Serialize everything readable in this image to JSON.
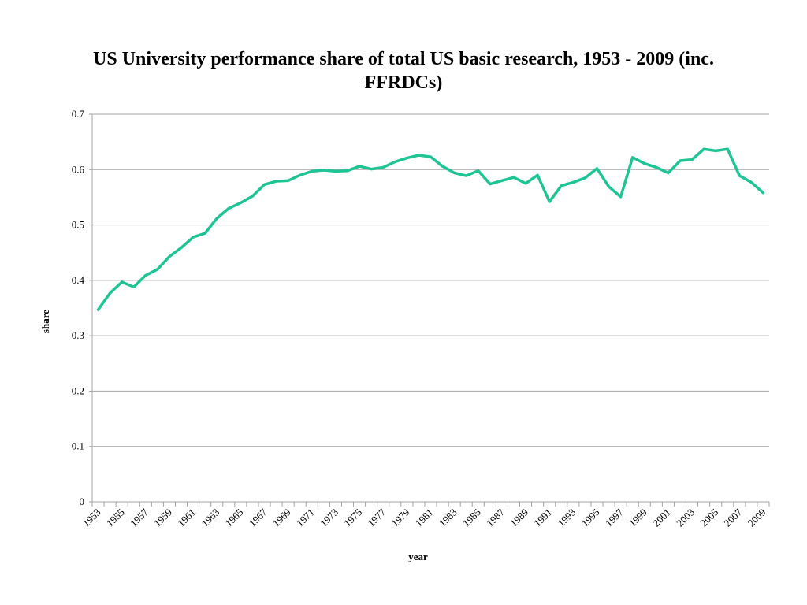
{
  "chart_data": {
    "type": "line",
    "title": "US University performance share of total US basic research, 1953 - 2009 (inc. FFRDCs)",
    "xlabel": "year",
    "ylabel": "share",
    "ylim": [
      0,
      0.7
    ],
    "yticks": [
      "0",
      "0.1",
      "0.2",
      "0.3",
      "0.4",
      "0.5",
      "0.6",
      "0.7"
    ],
    "xtick_labels": [
      "1953",
      "1955",
      "1957",
      "1959",
      "1961",
      "1963",
      "1965",
      "1967",
      "1969",
      "1971",
      "1973",
      "1975",
      "1977",
      "1979",
      "1981",
      "1983",
      "1985",
      "1987",
      "1989",
      "1991",
      "1993",
      "1995",
      "1997",
      "1999",
      "2001",
      "2003",
      "2005",
      "2007",
      "2009"
    ],
    "grid": true,
    "legend": "none",
    "line_color": "#1fc495",
    "x": [
      1953,
      1954,
      1955,
      1956,
      1957,
      1958,
      1959,
      1960,
      1961,
      1962,
      1963,
      1964,
      1965,
      1966,
      1967,
      1968,
      1969,
      1970,
      1971,
      1972,
      1973,
      1974,
      1975,
      1976,
      1977,
      1978,
      1979,
      1980,
      1981,
      1982,
      1983,
      1984,
      1985,
      1986,
      1987,
      1988,
      1989,
      1990,
      1991,
      1992,
      1993,
      1994,
      1995,
      1996,
      1997,
      1998,
      1999,
      2000,
      2001,
      2002,
      2003,
      2004,
      2005,
      2006,
      2007,
      2008,
      2009
    ],
    "series": [
      {
        "values": [
          0.347,
          0.377,
          0.397,
          0.388,
          0.409,
          0.42,
          0.443,
          0.459,
          0.478,
          0.485,
          0.512,
          0.53,
          0.54,
          0.552,
          0.573,
          0.579,
          0.58,
          0.59,
          0.597,
          0.599,
          0.597,
          0.598,
          0.606,
          0.601,
          0.604,
          0.614,
          0.621,
          0.626,
          0.623,
          0.606,
          0.594,
          0.589,
          0.598,
          0.574,
          0.58,
          0.586,
          0.575,
          0.59,
          0.542,
          0.571,
          0.577,
          0.585,
          0.602,
          0.569,
          0.551,
          0.622,
          0.611,
          0.604,
          0.594,
          0.616,
          0.618,
          0.637,
          0.634,
          0.637,
          0.589,
          0.577,
          0.558
        ]
      }
    ]
  }
}
